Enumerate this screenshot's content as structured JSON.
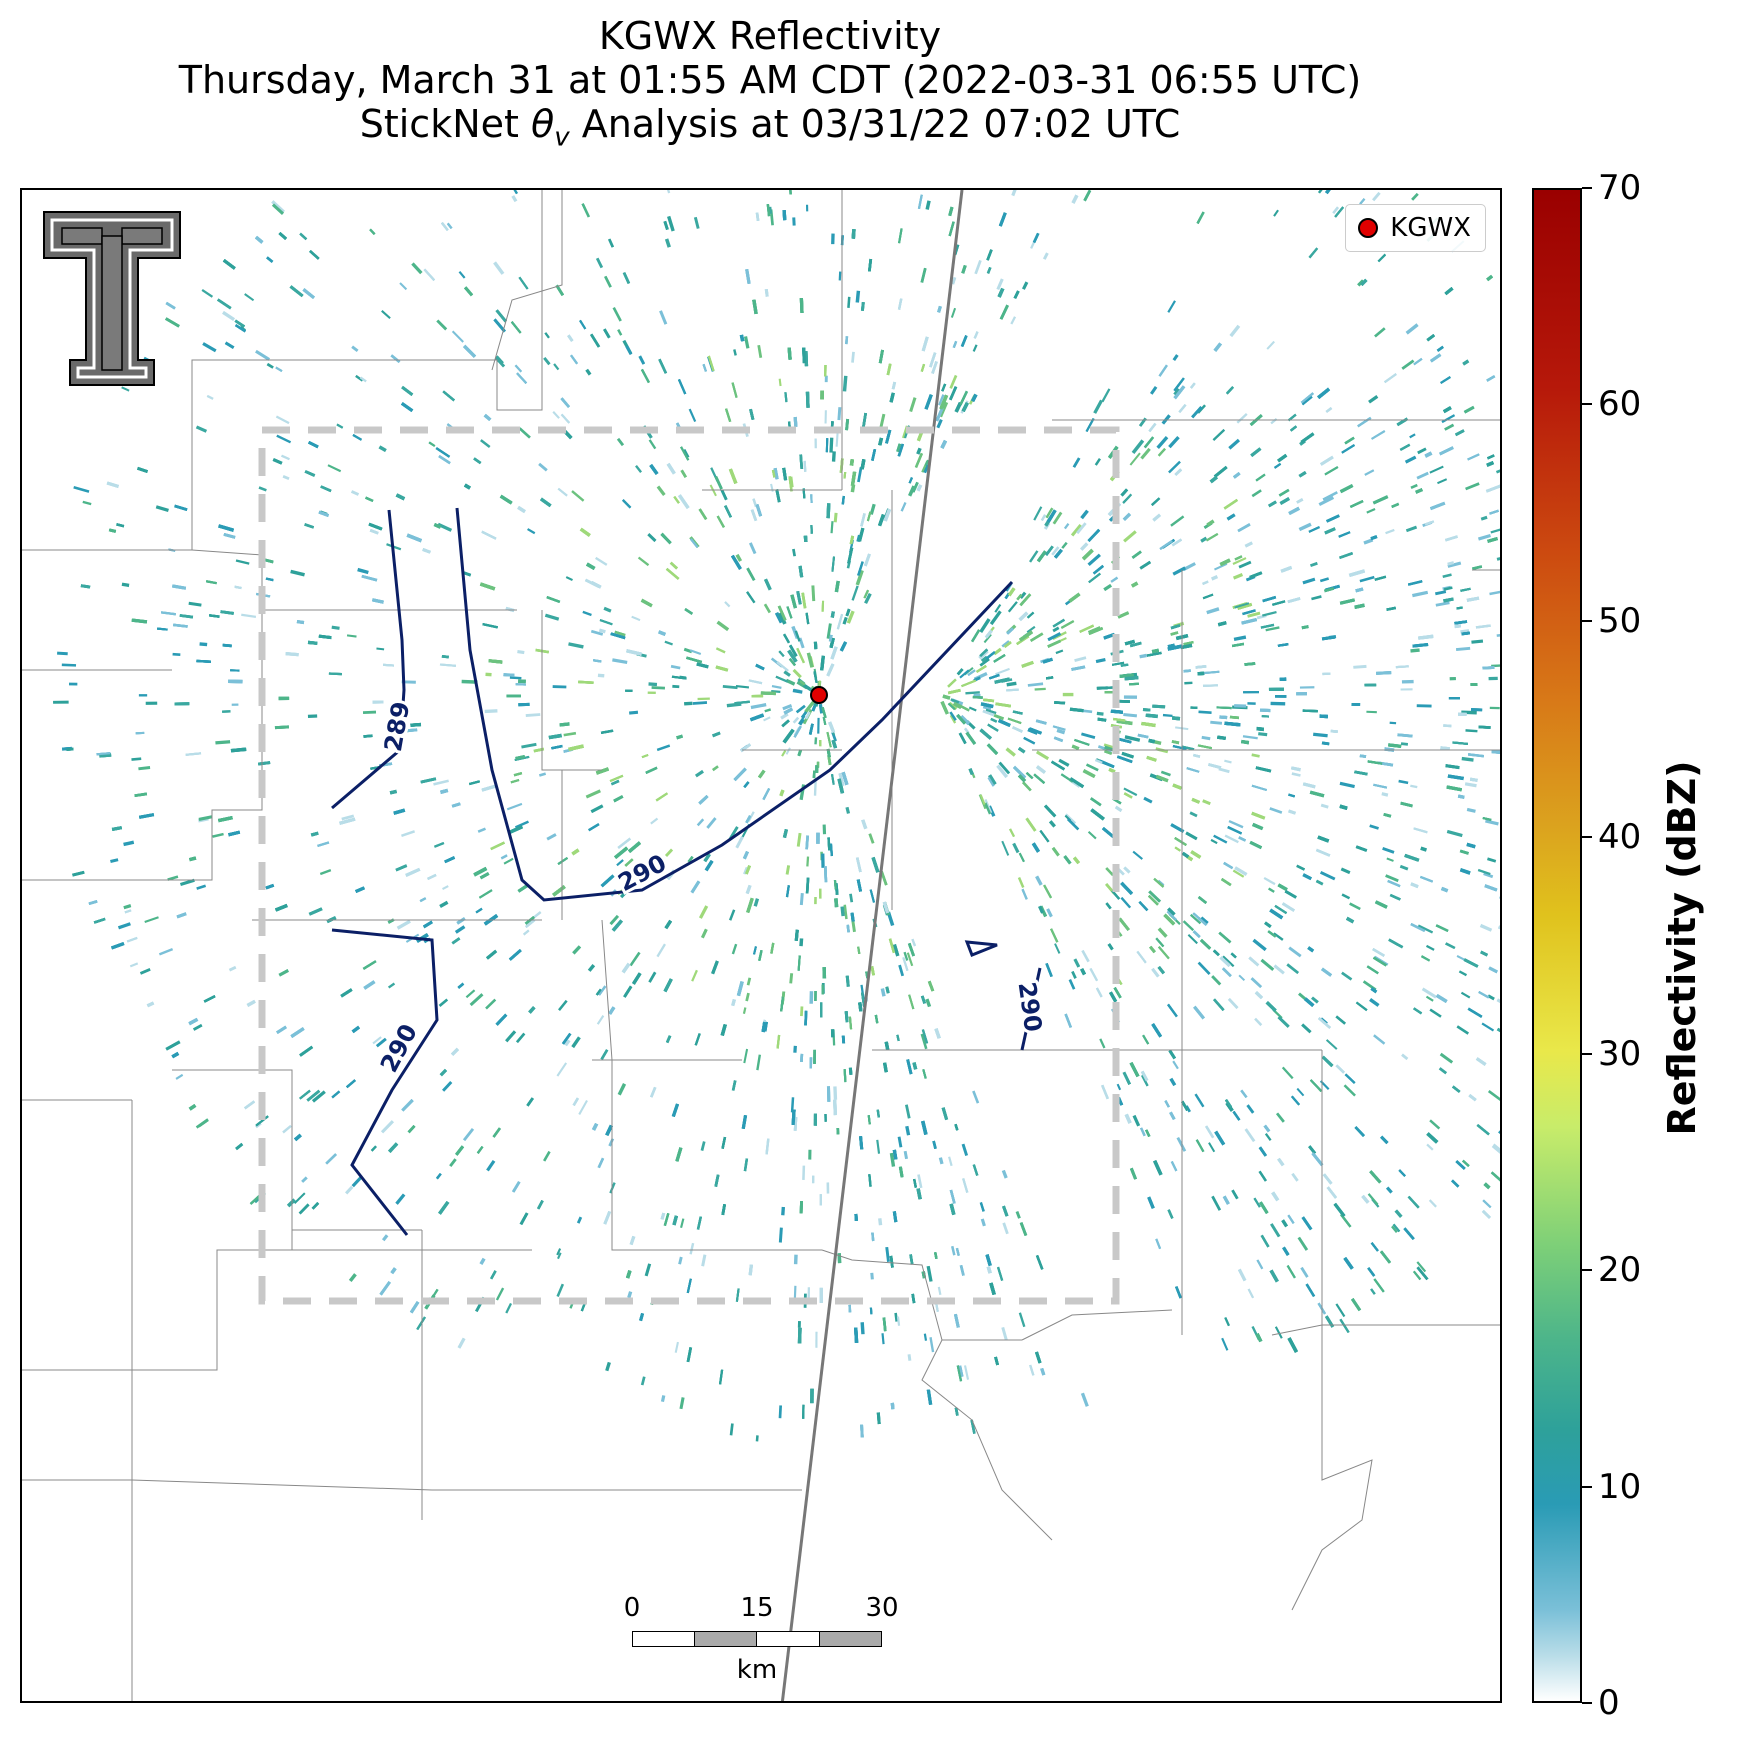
{
  "title": {
    "line1": "KGWX Reflectivity",
    "line2": "Thursday, March 31 at 01:55 AM CDT (2022-03-31 06:55 UTC)",
    "line3_prefix": "StickNet ",
    "line3_theta": "θ",
    "line3_sub": "v",
    "line3_suffix": " Analysis at 03/31/22 07:02 UTC"
  },
  "legend": {
    "label": "KGWX"
  },
  "contours": [
    {
      "label": "289"
    },
    {
      "label": "290"
    },
    {
      "label": "290"
    },
    {
      "label": "290"
    }
  ],
  "scalebar": {
    "ticks": [
      "0",
      "15",
      "30"
    ],
    "unit": "km"
  },
  "colorbar": {
    "label": "Reflectivity (dBZ)",
    "ticks": [
      "0",
      "10",
      "20",
      "30",
      "40",
      "50",
      "60",
      "70"
    ]
  },
  "colors": {
    "contour": "#0b1f66",
    "radar_marker": "#e00000",
    "analysis_box": "#c8c8c8",
    "echo_low": "#2a9bb5",
    "echo_mid": "#4db58a"
  },
  "icons": {
    "logo": "texas-tech-double-t-logo"
  }
}
